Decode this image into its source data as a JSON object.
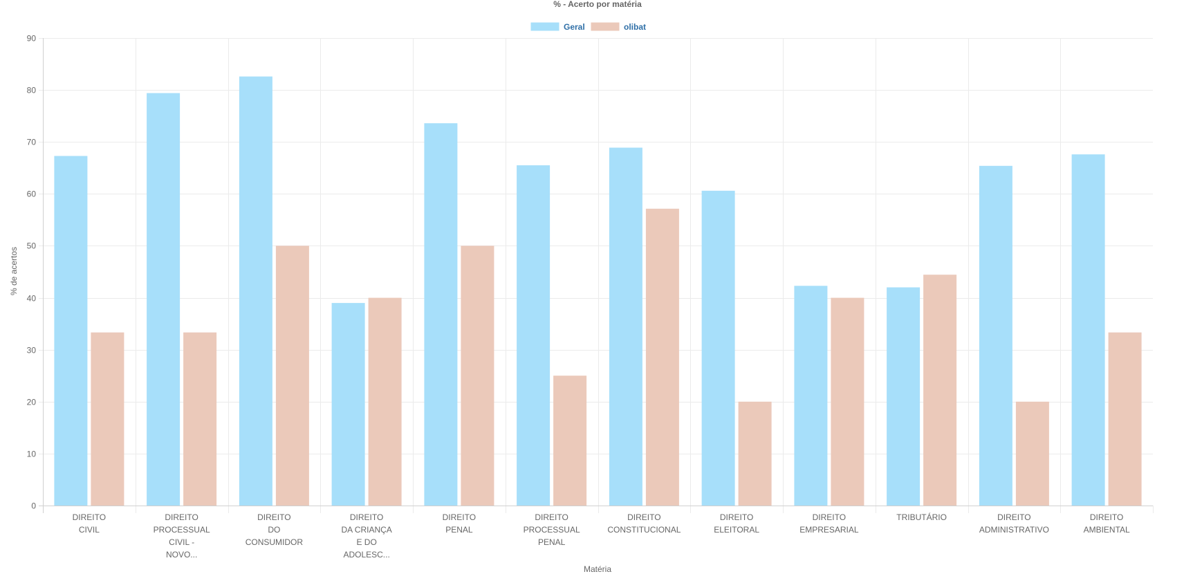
{
  "chart_data": {
    "type": "bar",
    "title": "% - Acerto por matéria",
    "xlabel": "Matéria",
    "ylabel": "% de acertos",
    "ylim": [
      0,
      90
    ],
    "yticks": [
      0,
      10,
      20,
      30,
      40,
      50,
      60,
      70,
      80,
      90
    ],
    "grid": true,
    "legend_position": "top-center",
    "categories": [
      [
        "DIREITO",
        "CIVIL"
      ],
      [
        "DIREITO",
        "PROCESSUAL",
        "CIVIL -",
        "NOVO..."
      ],
      [
        "DIREITO",
        "DO",
        "CONSUMIDOR"
      ],
      [
        "DIREITO",
        "DA CRIANÇA",
        "E DO",
        "ADOLESC..."
      ],
      [
        "DIREITO",
        "PENAL"
      ],
      [
        "DIREITO",
        "PROCESSUAL",
        "PENAL"
      ],
      [
        "DIREITO",
        "CONSTITUCIONAL"
      ],
      [
        "DIREITO",
        "ELEITORAL"
      ],
      [
        "DIREITO",
        "EMPRESARIAL"
      ],
      [
        "TRIBUTÁRIO"
      ],
      [
        "DIREITO",
        "ADMINISTRATIVO"
      ],
      [
        "DIREITO",
        "AMBIENTAL"
      ]
    ],
    "series": [
      {
        "name": "Geral",
        "color": "#a7dffa",
        "values": [
          67.3,
          79.4,
          82.6,
          39.0,
          73.6,
          65.5,
          68.9,
          60.6,
          42.3,
          42.0,
          65.4,
          67.6
        ]
      },
      {
        "name": "olibat",
        "color": "#ebc9ba",
        "values": [
          33.33,
          33.33,
          50,
          40,
          50,
          25,
          57.14,
          20,
          40,
          44.44,
          20,
          33.33
        ]
      }
    ]
  }
}
